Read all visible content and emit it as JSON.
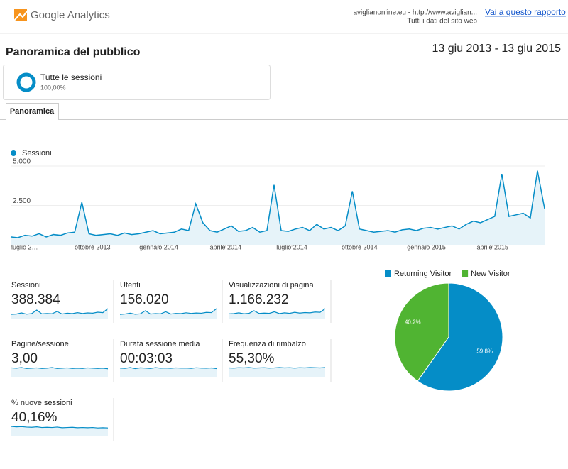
{
  "header": {
    "product": "Google Analytics",
    "property": "aviglianonline.eu - http://www.aviglian...",
    "view": "Tutti i dati del sito web",
    "link": "Vai a questo rapporto"
  },
  "title": "Panoramica del pubblico",
  "date_range": "13 giu 2013 - 13 giu 2015",
  "segment": {
    "name": "Tutte le sessioni",
    "share": "100,00%"
  },
  "tabs": [
    "Panoramica"
  ],
  "chart_data": [
    {
      "type": "line",
      "series": [
        {
          "name": "Sessioni",
          "color": "#058dc7",
          "values": [
            500,
            450,
            600,
            550,
            700,
            500,
            650,
            600,
            750,
            800,
            2700,
            700,
            600,
            650,
            700,
            600,
            750,
            650,
            700,
            800,
            900,
            700,
            750,
            800,
            1000,
            900,
            2600,
            1400,
            900,
            800,
            1000,
            1200,
            850,
            900,
            1100,
            800,
            900,
            3800,
            900,
            850,
            1000,
            1100,
            900,
            1300,
            1000,
            1100,
            900,
            1200,
            3400,
            1000,
            900,
            800,
            850,
            900,
            800,
            950,
            1000,
            900,
            1050,
            1100,
            1000,
            1100,
            1200,
            1000,
            1300,
            1500,
            1400,
            1600,
            1800,
            4500,
            1800,
            1900,
            2000,
            1700,
            4700,
            2300
          ]
        }
      ],
      "xlim": [
        0,
        75
      ],
      "xticks": [
        {
          "value": 0.1,
          "label": "luglio 2…"
        },
        {
          "value": 11.5,
          "label": "ottobre 2013"
        },
        {
          "value": 20.8,
          "label": "gennaio 2014"
        },
        {
          "value": 30.2,
          "label": "aprile 2014"
        },
        {
          "value": 39.5,
          "label": "luglio 2014"
        },
        {
          "value": 49,
          "label": "ottobre 2014"
        },
        {
          "value": 58.4,
          "label": "gennaio 2015"
        },
        {
          "value": 67.7,
          "label": "aprile 2015"
        }
      ],
      "ylim": [
        0,
        5000
      ],
      "yticks": [
        {
          "value": 2500,
          "label": "2.500"
        },
        {
          "value": 5000,
          "label": "5.000"
        }
      ],
      "grid": true
    },
    {
      "type": "pie",
      "categories": [
        "Returning Visitor",
        "New Visitor"
      ],
      "colors": [
        "#058dc7",
        "#50b432"
      ],
      "values": [
        59.8,
        40.2
      ],
      "value_labels": [
        "59.8%",
        "40.2%"
      ]
    }
  ],
  "metrics": [
    {
      "label": "Sessioni",
      "value": "388.384",
      "spark": [
        300,
        320,
        400,
        310,
        350,
        600,
        330,
        360,
        340,
        500,
        320,
        380,
        350,
        420,
        360,
        400,
        380,
        450,
        420,
        700
      ]
    },
    {
      "label": "Utenti",
      "value": "156.020",
      "spark": [
        200,
        220,
        260,
        210,
        230,
        380,
        220,
        240,
        230,
        330,
        220,
        250,
        240,
        280,
        250,
        270,
        260,
        300,
        290,
        480
      ]
    },
    {
      "label": "Visualizzazioni di pagina",
      "value": "1.166.232",
      "spark": [
        900,
        950,
        1100,
        920,
        1000,
        1500,
        980,
        1050,
        1000,
        1300,
        950,
        1100,
        1000,
        1200,
        1050,
        1150,
        1100,
        1250,
        1200,
        1900
      ]
    },
    {
      "label": "Pagine/sessione",
      "value": "3,00",
      "spark": [
        3.1,
        3.0,
        3.2,
        2.9,
        3.0,
        3.1,
        2.9,
        3.0,
        3.2,
        2.9,
        3.0,
        3.1,
        2.9,
        3.0,
        2.9,
        3.1,
        3.0,
        2.9,
        3.0,
        2.8
      ]
    },
    {
      "label": "Durata sessione media",
      "value": "00:03:03",
      "spark": [
        180,
        175,
        190,
        170,
        185,
        180,
        172,
        188,
        178,
        182,
        176,
        184,
        179,
        181,
        175,
        186,
        180,
        177,
        183,
        170
      ]
    },
    {
      "label": "Frequenza di rimbalzo",
      "value": "55,30%",
      "spark": [
        55,
        54,
        56,
        55,
        57,
        54,
        55,
        56,
        54,
        55,
        57,
        55,
        56,
        54,
        56,
        55,
        57,
        56,
        55,
        57
      ]
    },
    {
      "label": "% nuove sessioni",
      "value": "40,16%",
      "spark": [
        45,
        43,
        44,
        42,
        41,
        43,
        40,
        41,
        40,
        42,
        39,
        40,
        41,
        39,
        40,
        39,
        40,
        38,
        39,
        38
      ]
    }
  ]
}
